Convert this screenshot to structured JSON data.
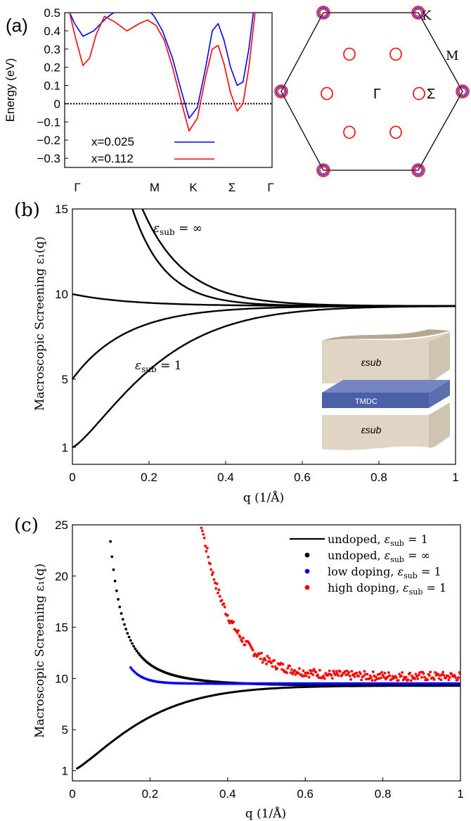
{
  "chart_data": [
    {
      "panel": "(a)",
      "type": "line",
      "ylabel": "Energy (eV)",
      "ylim": [
        -0.35,
        0.5
      ],
      "yticks": [
        "0.5",
        "0.4",
        "0.3",
        "0.2",
        "0.1",
        "0",
        "−0.1",
        "−0.2",
        "−0.3"
      ],
      "ytick_values": [
        0.5,
        0.4,
        0.3,
        0.2,
        0.1,
        0,
        -0.1,
        -0.2,
        -0.3
      ],
      "xticks": [
        "Γ",
        "M",
        "K",
        "Σ",
        "Γ"
      ],
      "xtick_positions": [
        0,
        1,
        1.5,
        2.0,
        2.5
      ],
      "fermi_level": 0,
      "legend_placement": "bottom-left",
      "series": [
        {
          "name": "x=0.025",
          "color": "#0000ff",
          "x": [
            0.04,
            0.12,
            0.22,
            0.35,
            0.5,
            0.65,
            0.8,
            0.92,
            1.0,
            1.08,
            1.18,
            1.3,
            1.4,
            1.5,
            1.6,
            1.7,
            1.78,
            1.85,
            1.92,
            2.0,
            2.08,
            2.15,
            2.22,
            2.28
          ],
          "y": [
            0.52,
            0.44,
            0.37,
            0.4,
            0.47,
            0.52,
            0.55,
            0.54,
            0.52,
            0.48,
            0.4,
            0.25,
            0.08,
            -0.08,
            -0.02,
            0.2,
            0.4,
            0.44,
            0.35,
            0.2,
            0.1,
            0.12,
            0.3,
            0.52
          ]
        },
        {
          "name": "x=0.112",
          "color": "#ff0000",
          "x": [
            0.05,
            0.12,
            0.22,
            0.3,
            0.38,
            0.48,
            0.6,
            0.75,
            0.9,
            1.0,
            1.1,
            1.2,
            1.3,
            1.4,
            1.5,
            1.6,
            1.7,
            1.78,
            1.85,
            1.92,
            2.0,
            2.08,
            2.15,
            2.22,
            2.3
          ],
          "y": [
            0.52,
            0.38,
            0.21,
            0.25,
            0.38,
            0.48,
            0.45,
            0.4,
            0.44,
            0.46,
            0.43,
            0.35,
            0.2,
            0.02,
            -0.15,
            -0.08,
            0.15,
            0.3,
            0.32,
            0.22,
            0.06,
            -0.04,
            0.0,
            0.2,
            0.52
          ]
        }
      ],
      "legend_entries": [
        "x=0.025",
        "x=0.112"
      ]
    },
    {
      "panel": "(a) Brillouin zone",
      "type": "scatter",
      "labels": [
        "K",
        "M",
        "Γ",
        "Σ"
      ],
      "colors": {
        "x=0.025": "#0000ff",
        "x=0.112": "#ff0000"
      }
    },
    {
      "panel": "(b)",
      "type": "line",
      "xlabel": "q (1/Å)",
      "ylabel": "Macroscopic Screening ε₁(q)",
      "xlim": [
        0,
        1
      ],
      "ylim": [
        0,
        15
      ],
      "xticks": [
        "0",
        "0.2",
        "0.4",
        "0.6",
        "0.8",
        "1"
      ],
      "yticks": [
        "15",
        "10",
        "5",
        "1"
      ],
      "ytick_values": [
        15,
        10,
        5,
        1
      ],
      "annotations": [
        "εsub = ∞",
        "εsub = 1"
      ],
      "inset": {
        "top": "εsub",
        "middle": "TMDC",
        "bottom": "εsub"
      },
      "series": [
        {
          "color": "#000000",
          "model": "inf_large",
          "asymptote": 9.3
        },
        {
          "color": "#000000",
          "model": "inf_small",
          "asymptote": 9.3
        },
        {
          "color": "#000000",
          "model": "mid",
          "asymptote": 9.3
        },
        {
          "color": "#000000",
          "model": "five",
          "asymptote": 9.3
        },
        {
          "color": "#000000",
          "model": "one",
          "asymptote": 9.3
        }
      ]
    },
    {
      "panel": "(c)",
      "type": "scatter",
      "xlabel": "q (1/Å)",
      "ylabel": "Macroscopic Screening ε₁(q)",
      "xlim": [
        0,
        1
      ],
      "ylim": [
        0,
        25
      ],
      "xticks": [
        "0",
        "0.2",
        "0.4",
        "0.6",
        "0.8",
        "1"
      ],
      "yticks": [
        "25",
        "20",
        "15",
        "10",
        "5",
        "1"
      ],
      "ytick_values": [
        25,
        20,
        15,
        10,
        5,
        1
      ],
      "legend_placement": "top-right",
      "series": [
        {
          "name": "undoped, εsub = 1",
          "color": "#000000",
          "style": "line"
        },
        {
          "name": "undoped, εsub = ∞",
          "color": "#000000",
          "style": "dots"
        },
        {
          "name": "low doping, εsub = 1",
          "color": "#0000ff",
          "style": "dots"
        },
        {
          "name": "high doping, εsub = 1",
          "color": "#ff0000",
          "style": "dots"
        }
      ]
    }
  ]
}
